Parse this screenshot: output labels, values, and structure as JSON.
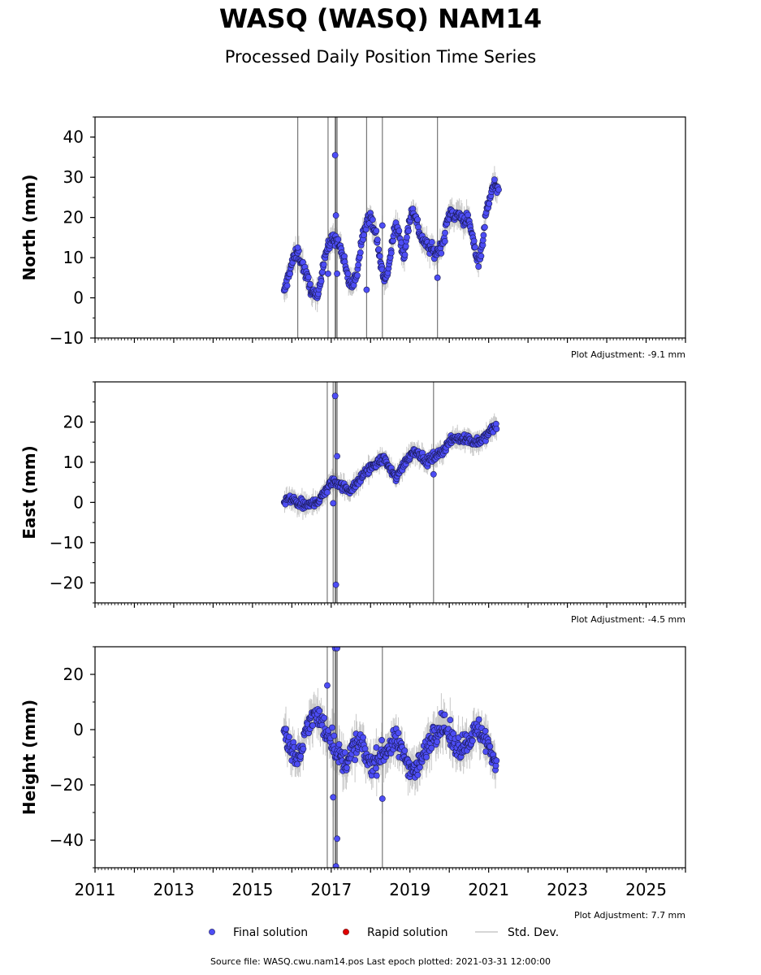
{
  "header": {
    "title": "WASQ (WASQ) NAM14",
    "subtitle": "Processed Daily Position Time Series"
  },
  "chart_data": [
    {
      "type": "scatter",
      "name": "north",
      "ylabel": "North (mm)",
      "ylim": [
        -10,
        45
      ],
      "yticks": [
        -10,
        0,
        10,
        20,
        30,
        40
      ],
      "xlim": [
        2011,
        2026
      ],
      "adjustment": "Plot Adjustment: -9.1 mm",
      "outliers": [
        [
          2017.1,
          35.5
        ],
        [
          2017.12,
          20.5
        ],
        [
          2016.92,
          6
        ],
        [
          2017.15,
          6
        ],
        [
          2016.15,
          12.5
        ],
        [
          2019.7,
          5
        ],
        [
          2018.3,
          18
        ],
        [
          2017.9,
          2
        ]
      ],
      "series": [
        {
          "name": "Final solution",
          "x": [
            2015.8,
            2015.95,
            2016.05,
            2016.15,
            2016.25,
            2016.35,
            2016.45,
            2016.55,
            2016.65,
            2016.75,
            2016.85,
            2016.95,
            2017.05,
            2017.15,
            2017.25,
            2017.35,
            2017.45,
            2017.55,
            2017.65,
            2017.75,
            2017.85,
            2017.95,
            2018.05,
            2018.15,
            2018.25,
            2018.35,
            2018.45,
            2018.55,
            2018.65,
            2018.75,
            2018.85,
            2018.95,
            2019.05,
            2019.15,
            2019.25,
            2019.35,
            2019.45,
            2019.55,
            2019.65,
            2019.75,
            2019.85,
            2019.95,
            2020.05,
            2020.15,
            2020.25,
            2020.35,
            2020.45,
            2020.55,
            2020.65,
            2020.75,
            2020.85,
            2020.95,
            2021.05,
            2021.15,
            2021.25
          ],
          "y": [
            1,
            7,
            10,
            11,
            9,
            6,
            3,
            1,
            0,
            6,
            11,
            13,
            15,
            14,
            12,
            8,
            4,
            3,
            6,
            13,
            18,
            20,
            19,
            15,
            9,
            4,
            7,
            14,
            18,
            15,
            10,
            17,
            22,
            20,
            16,
            14,
            13,
            12,
            11,
            12,
            14,
            19,
            22,
            20,
            21,
            19,
            20,
            17,
            12,
            9,
            14,
            22,
            26,
            28,
            27
          ]
        }
      ]
    },
    {
      "type": "scatter",
      "name": "east",
      "ylabel": "East (mm)",
      "ylim": [
        -25,
        30
      ],
      "yticks": [
        -20,
        -10,
        0,
        10,
        20
      ],
      "xlim": [
        2011,
        2026
      ],
      "adjustment": "Plot Adjustment: -4.5 mm",
      "outliers": [
        [
          2017.1,
          26.5
        ],
        [
          2017.12,
          -20.5
        ],
        [
          2017.15,
          11.5
        ],
        [
          2017.05,
          -0.2
        ],
        [
          2016.9,
          2.5
        ],
        [
          2019.6,
          7
        ]
      ],
      "series": [
        {
          "name": "Final solution",
          "x": [
            2015.8,
            2015.95,
            2016.1,
            2016.25,
            2016.4,
            2016.55,
            2016.7,
            2016.85,
            2017.0,
            2017.15,
            2017.3,
            2017.45,
            2017.6,
            2017.75,
            2017.9,
            2018.05,
            2018.2,
            2018.35,
            2018.5,
            2018.65,
            2018.8,
            2018.95,
            2019.1,
            2019.25,
            2019.4,
            2019.55,
            2019.7,
            2019.85,
            2020.0,
            2020.15,
            2020.3,
            2020.45,
            2020.6,
            2020.75,
            2020.9,
            2021.05,
            2021.2
          ],
          "y": [
            0,
            1,
            0,
            -0.5,
            -1,
            0,
            0.5,
            3,
            5,
            5,
            4,
            3,
            4,
            6,
            8,
            9,
            10,
            11,
            8,
            6,
            9,
            11,
            13,
            12,
            10,
            11,
            12,
            13,
            15,
            16,
            16,
            16,
            15,
            15,
            16,
            18,
            19
          ]
        }
      ]
    },
    {
      "type": "scatter",
      "name": "height",
      "ylabel": "Height (mm)",
      "ylim": [
        -50,
        30
      ],
      "yticks": [
        -40,
        -20,
        0,
        20
      ],
      "xlim": [
        2011,
        2026
      ],
      "xticks": [
        2011,
        2013,
        2015,
        2017,
        2019,
        2021,
        2023,
        2025
      ],
      "adjustment": "Plot Adjustment: 7.7 mm",
      "outliers": [
        [
          2017.1,
          29.5
        ],
        [
          2017.15,
          29.5
        ],
        [
          2017.15,
          -39.5
        ],
        [
          2017.12,
          -49.5
        ],
        [
          2018.3,
          -25
        ],
        [
          2017.05,
          -24.5
        ],
        [
          2016.9,
          16
        ]
      ],
      "series": [
        {
          "name": "Final solution",
          "x": [
            2015.8,
            2015.95,
            2016.1,
            2016.25,
            2016.4,
            2016.55,
            2016.7,
            2016.85,
            2017.0,
            2017.15,
            2017.3,
            2017.45,
            2017.6,
            2017.75,
            2017.9,
            2018.05,
            2018.2,
            2018.35,
            2018.5,
            2018.65,
            2018.8,
            2018.95,
            2019.1,
            2019.25,
            2019.4,
            2019.55,
            2019.7,
            2019.85,
            2020.0,
            2020.15,
            2020.3,
            2020.45,
            2020.6,
            2020.75,
            2020.9,
            2021.05,
            2021.2
          ],
          "y": [
            0,
            -6,
            -10,
            -8,
            2,
            5,
            4,
            0,
            -3,
            -8,
            -12,
            -10,
            -6,
            -5,
            -10,
            -13,
            -10,
            -8,
            -6,
            -4,
            -8,
            -12,
            -15,
            -12,
            -8,
            -2,
            0,
            2,
            -2,
            -6,
            -6,
            -4,
            -2,
            0,
            -3,
            -8,
            -12
          ]
        }
      ]
    }
  ],
  "legend": {
    "final": "Final solution",
    "rapid": "Rapid solution",
    "std": "Std. Dev.",
    "final_color": "#4d4df5",
    "rapid_color": "#e00000",
    "std_color": "#c8c8c8"
  },
  "footer": {
    "source": "Source file: WASQ.cwu.nam14.pos  Last epoch plotted: 2021-03-31 12:00:00"
  }
}
